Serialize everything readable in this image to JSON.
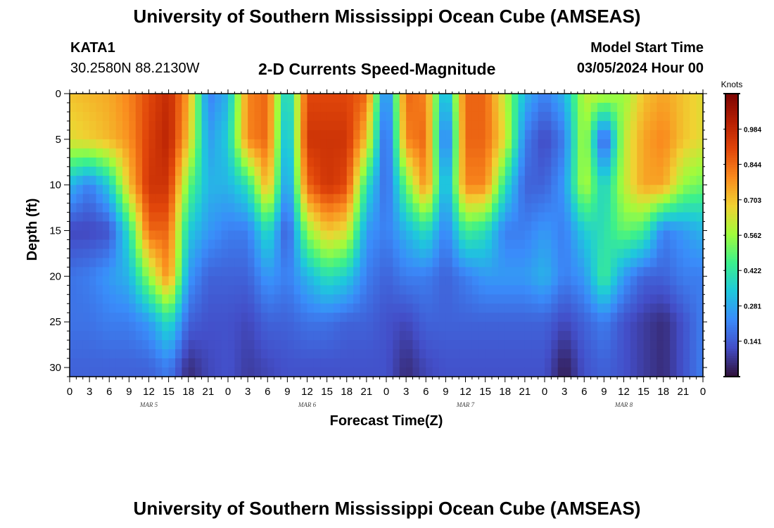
{
  "header": {
    "title": "University of Southern Mississippi Ocean Cube (AMSEAS)",
    "footer_title": "University of Southern Mississippi Ocean Cube (AMSEAS)",
    "station": "KATA1",
    "coordinates": "30.2580N  88.2130W",
    "model_start_label": "Model Start Time",
    "model_start_value": "03/05/2024 Hour 00"
  },
  "chart_data": {
    "type": "heatmap",
    "title": "2-D Currents Speed-Magnitude",
    "xlabel": "Forecast Time(Z)",
    "ylabel": "Depth (ft)",
    "x_range_hours": [
      0,
      96
    ],
    "y_range_ft": [
      0,
      31
    ],
    "y_inverted": true,
    "y_ticks": [
      0,
      5,
      10,
      15,
      20,
      25,
      30
    ],
    "x_tick_labels": [
      "0",
      "3",
      "6",
      "9",
      "12",
      "15",
      "18",
      "21",
      "0",
      "3",
      "6",
      "9",
      "12",
      "15",
      "18",
      "21",
      "0",
      "3",
      "6",
      "9",
      "12",
      "15",
      "18",
      "21",
      "0",
      "3",
      "6",
      "9",
      "12",
      "15",
      "18",
      "21",
      "0"
    ],
    "date_labels": [
      {
        "label": "MAR 5",
        "hour": 12
      },
      {
        "label": "MAR 6",
        "hour": 36
      },
      {
        "label": "MAR 7",
        "hour": 60
      },
      {
        "label": "MAR 8",
        "hour": 84
      }
    ],
    "colorbar": {
      "units": "Knots",
      "min": 0.0,
      "max": 1.125,
      "ticks": [
        "0.984",
        "0.844",
        "0.703",
        "0.562",
        "0.422",
        "0.281",
        "0.141"
      ],
      "tick_values": [
        0.984,
        0.844,
        0.703,
        0.562,
        0.422,
        0.281,
        0.141
      ],
      "colormap": "turbo"
    },
    "depths_ft": [
      0,
      5,
      10,
      15,
      20,
      25,
      30
    ],
    "hours": [
      0,
      3,
      6,
      9,
      12,
      15,
      18,
      21,
      24,
      27,
      30,
      33,
      36,
      39,
      42,
      45,
      48,
      51,
      54,
      57,
      60,
      63,
      66,
      69,
      72,
      75,
      78,
      81,
      84,
      87,
      90,
      93,
      96
    ],
    "speed_knots_grid": [
      [
        0.7,
        0.72,
        0.74,
        0.8,
        0.9,
        0.98,
        0.75,
        0.2,
        0.3,
        0.8,
        0.85,
        0.3,
        0.9,
        0.9,
        0.9,
        0.85,
        0.15,
        0.85,
        0.8,
        0.25,
        0.85,
        0.85,
        0.6,
        0.3,
        0.2,
        0.3,
        0.6,
        0.6,
        0.55,
        0.7,
        0.75,
        0.7,
        0.65
      ],
      [
        0.65,
        0.68,
        0.72,
        0.78,
        0.92,
        1.0,
        0.7,
        0.25,
        0.35,
        0.8,
        0.85,
        0.25,
        0.95,
        0.95,
        0.95,
        0.7,
        0.1,
        0.8,
        0.85,
        0.12,
        0.85,
        0.85,
        0.65,
        0.2,
        0.1,
        0.2,
        0.6,
        0.1,
        0.6,
        0.75,
        0.8,
        0.7,
        0.65
      ],
      [
        0.3,
        0.2,
        0.35,
        0.7,
        0.95,
        0.95,
        0.5,
        0.3,
        0.3,
        0.4,
        0.75,
        0.2,
        0.85,
        0.95,
        0.9,
        0.4,
        0.15,
        0.5,
        0.8,
        0.25,
        0.8,
        0.8,
        0.4,
        0.15,
        0.15,
        0.25,
        0.6,
        0.35,
        0.6,
        0.75,
        0.75,
        0.55,
        0.5
      ],
      [
        0.1,
        0.1,
        0.12,
        0.4,
        0.85,
        0.85,
        0.35,
        0.25,
        0.2,
        0.2,
        0.4,
        0.12,
        0.55,
        0.7,
        0.65,
        0.25,
        0.2,
        0.3,
        0.4,
        0.2,
        0.45,
        0.4,
        0.2,
        0.2,
        0.25,
        0.2,
        0.35,
        0.4,
        0.5,
        0.45,
        0.2,
        0.25,
        0.3
      ],
      [
        0.18,
        0.2,
        0.25,
        0.3,
        0.55,
        0.8,
        0.25,
        0.15,
        0.15,
        0.15,
        0.25,
        0.2,
        0.3,
        0.4,
        0.35,
        0.2,
        0.15,
        0.2,
        0.2,
        0.15,
        0.2,
        0.25,
        0.25,
        0.25,
        0.3,
        0.2,
        0.25,
        0.45,
        0.25,
        0.15,
        0.15,
        0.2,
        0.2
      ],
      [
        0.18,
        0.18,
        0.2,
        0.2,
        0.25,
        0.4,
        0.15,
        0.12,
        0.12,
        0.1,
        0.15,
        0.15,
        0.18,
        0.18,
        0.15,
        0.15,
        0.12,
        0.1,
        0.15,
        0.15,
        0.15,
        0.15,
        0.15,
        0.15,
        0.15,
        0.1,
        0.15,
        0.2,
        0.12,
        0.08,
        0.05,
        0.12,
        0.2
      ],
      [
        0.15,
        0.15,
        0.15,
        0.15,
        0.15,
        0.2,
        0.05,
        0.1,
        0.12,
        0.08,
        0.1,
        0.12,
        0.12,
        0.12,
        0.12,
        0.12,
        0.12,
        0.05,
        0.1,
        0.12,
        0.12,
        0.12,
        0.12,
        0.12,
        0.12,
        0.02,
        0.12,
        0.15,
        0.12,
        0.08,
        0.05,
        0.12,
        0.2
      ]
    ]
  }
}
